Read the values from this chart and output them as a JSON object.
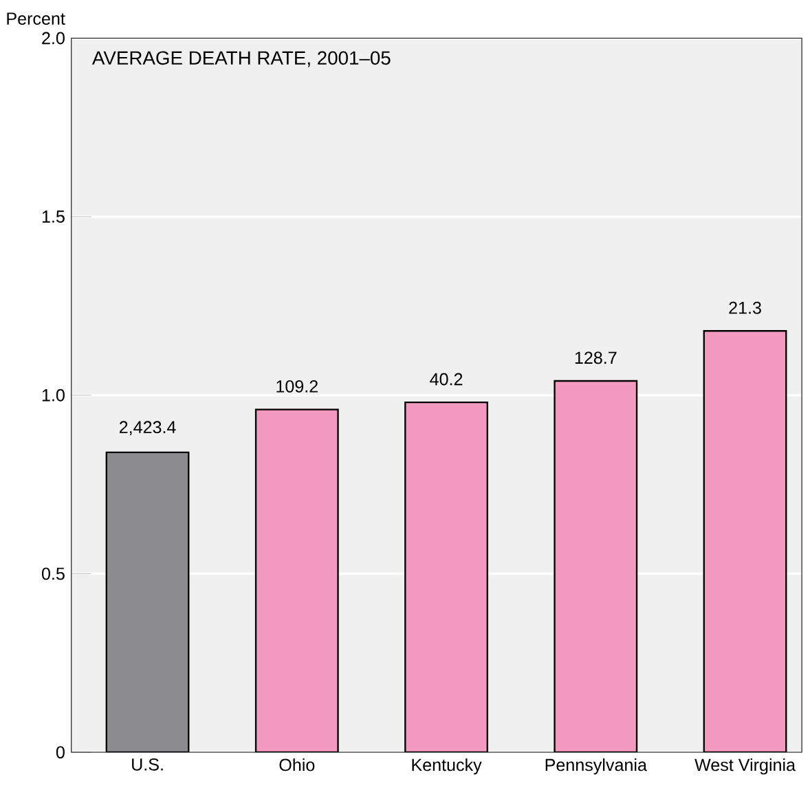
{
  "chart_data": {
    "type": "bar",
    "title": "AVERAGE DEATH RATE, 2001–05",
    "ylabel": "Percent",
    "categories": [
      "U.S.",
      "Ohio",
      "Kentucky",
      "Pennsylvania",
      "West Virginia"
    ],
    "values": [
      0.84,
      0.96,
      0.98,
      1.04,
      1.18
    ],
    "colors": [
      "#8c8c8f",
      "#f49ac1",
      "#f49ac1",
      "#f49ac1",
      "#f49ac1"
    ],
    "annotations": [
      {
        "text": "2,423.4",
        "x": "U.S.",
        "y": 0.84
      },
      {
        "text": "109.2",
        "x": "Ohio",
        "y": 0.96
      },
      {
        "text": "40.2",
        "x": "Kentucky",
        "y": 0.98
      },
      {
        "text": "128.7",
        "x": "Pennsylvania",
        "y": 1.04
      },
      {
        "text": "21.3",
        "x": "West Virginia",
        "y": 1.18
      }
    ],
    "ylim": [
      0,
      2
    ],
    "yticks": [
      0,
      0.5,
      {
        "value": 1,
        "label": "1.0"
      },
      1.5,
      {
        "value": 2,
        "label": "2.0"
      }
    ],
    "grid": "y"
  }
}
